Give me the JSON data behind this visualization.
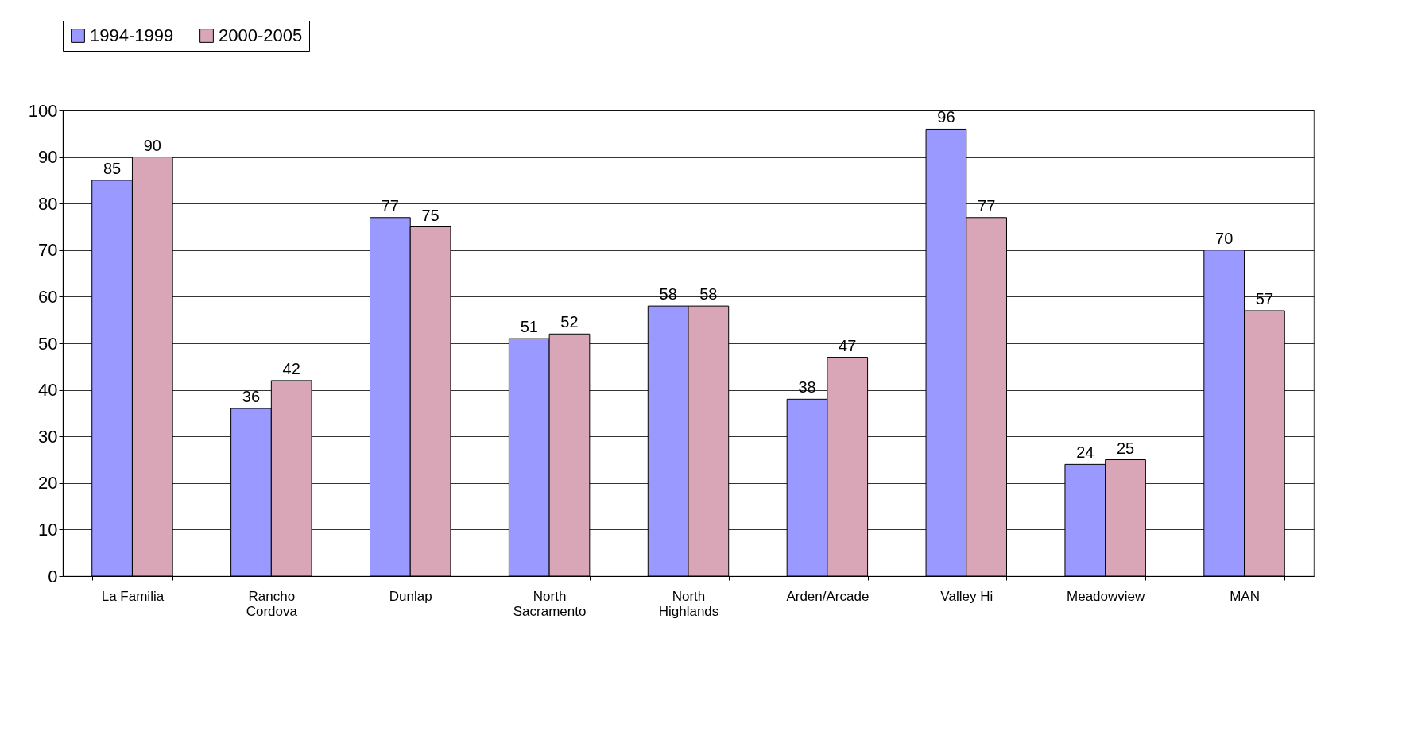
{
  "chart_data": {
    "type": "bar",
    "categories": [
      "La Familia",
      "Rancho Cordova",
      "Dunlap",
      "North Sacramento",
      "North Highlands",
      "Arden/Arcade",
      "Valley Hi",
      "Meadowview",
      "MAN"
    ],
    "series": [
      {
        "name": "1994-1999",
        "color": "#9999ff",
        "values": [
          85,
          36,
          77,
          51,
          58,
          38,
          96,
          24,
          70
        ]
      },
      {
        "name": "2000-2005",
        "color": "#d9a6b8",
        "values": [
          90,
          42,
          75,
          52,
          58,
          47,
          77,
          25,
          57
        ]
      }
    ],
    "ylim": [
      0,
      100
    ],
    "yticks": [
      0,
      10,
      20,
      30,
      40,
      50,
      60,
      70,
      80,
      90,
      100
    ],
    "grid": "y",
    "legend": "top",
    "data_labels": true
  }
}
